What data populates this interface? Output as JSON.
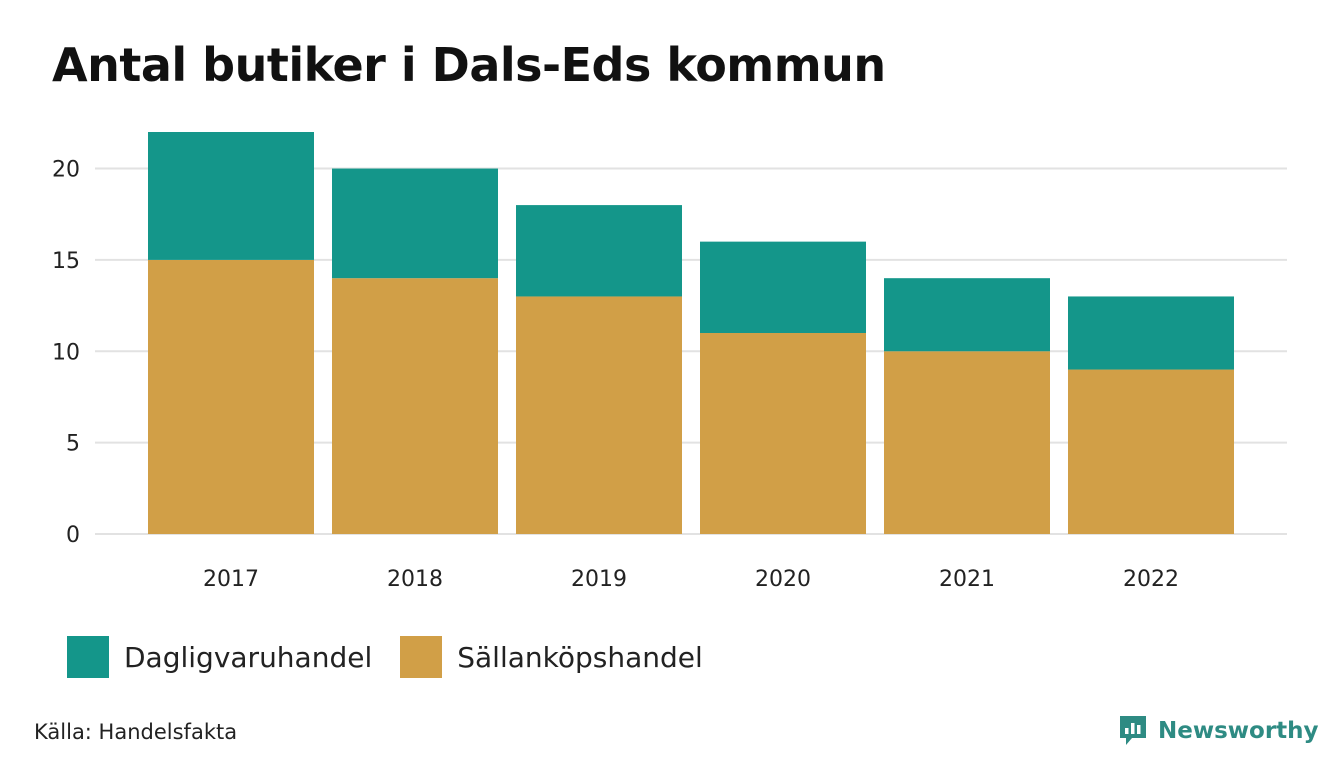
{
  "chart_data": {
    "type": "bar",
    "stacked": true,
    "title": "Antal butiker i Dals-Eds kommun",
    "categories": [
      "2017",
      "2018",
      "2019",
      "2020",
      "2021",
      "2022"
    ],
    "series": [
      {
        "name": "Sällanköpshandel",
        "color": "#d19f47",
        "values": [
          15,
          14,
          13,
          11,
          10,
          9
        ]
      },
      {
        "name": "Dagligvaruhandel",
        "color": "#14968a",
        "values": [
          7,
          6,
          5,
          5,
          4,
          4
        ]
      }
    ],
    "ylim": [
      0,
      22
    ],
    "yticks": [
      0,
      5,
      10,
      15,
      20
    ],
    "xlabel": "",
    "ylabel": "",
    "grid": true,
    "legend_position": "bottom-left"
  },
  "legend": [
    {
      "label": "Dagligvaruhandel",
      "color": "#14968a"
    },
    {
      "label": "Sällanköpshandel",
      "color": "#d19f47"
    }
  ],
  "source": "Källa: Handelsfakta",
  "brand": {
    "name": "Newsworthy",
    "icon": "newsworthy-logo-icon",
    "color": "#2e8b83"
  }
}
